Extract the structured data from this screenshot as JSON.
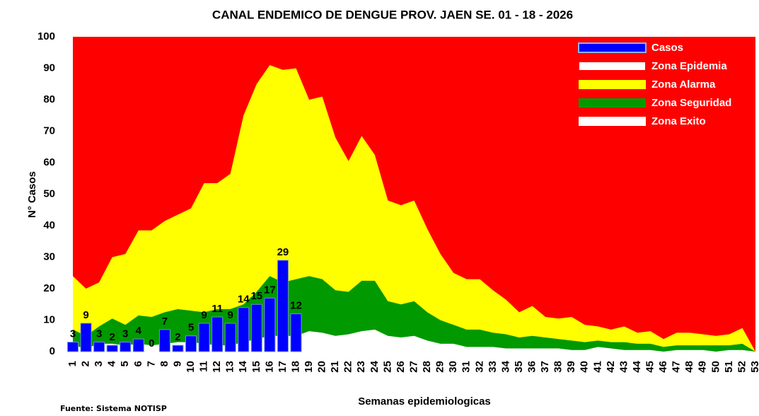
{
  "chart_data": {
    "type": "area",
    "title": "CANAL ENDEMICO DE DENGUE PROV. JAEN SE. 01 - 18 - 2026",
    "x_label": "Semanas epidemiologicas",
    "y_label": "N° Casos",
    "source": "Fuente: Sistema NOTISP",
    "categories": [
      "1",
      "2",
      "3",
      "4",
      "5",
      "6",
      "7",
      "8",
      "9",
      "10",
      "11",
      "12",
      "13",
      "14",
      "15",
      "16",
      "17",
      "18",
      "19",
      "20",
      "21",
      "22",
      "23",
      "24",
      "25",
      "26",
      "27",
      "28",
      "29",
      "30",
      "31",
      "32",
      "33",
      "34",
      "35",
      "36",
      "37",
      "38",
      "39",
      "40",
      "41",
      "42",
      "43",
      "44",
      "45",
      "46",
      "47",
      "48",
      "49",
      "50",
      "51",
      "52",
      "53"
    ],
    "ylim": [
      0,
      100
    ],
    "yticks": [
      0,
      10,
      20,
      30,
      40,
      50,
      60,
      70,
      80,
      90,
      100
    ],
    "grid": false,
    "legend": "top-right",
    "series": [
      {
        "name": "Casos",
        "type": "bar",
        "color": "#0000ff",
        "values": [
          3,
          9,
          3,
          2,
          3,
          4,
          0,
          7,
          2,
          5,
          9,
          11,
          9,
          14,
          15,
          17,
          29,
          12,
          null,
          null,
          null,
          null,
          null,
          null,
          null,
          null,
          null,
          null,
          null,
          null,
          null,
          null,
          null,
          null,
          null,
          null,
          null,
          null,
          null,
          null,
          null,
          null,
          null,
          null,
          null,
          null,
          null,
          null,
          null,
          null,
          null,
          null,
          null
        ]
      },
      {
        "name": "Zona Epidemia",
        "type": "area",
        "color": "#ff0000",
        "values": [
          100,
          100,
          100,
          100,
          100,
          100,
          100,
          100,
          100,
          100,
          100,
          100,
          100,
          100,
          100,
          100,
          100,
          100,
          100,
          100,
          100,
          100,
          100,
          100,
          100,
          100,
          100,
          100,
          100,
          100,
          100,
          100,
          100,
          100,
          100,
          100,
          100,
          100,
          100,
          100,
          100,
          100,
          100,
          100,
          100,
          100,
          100,
          100,
          100,
          100,
          100,
          100,
          100
        ]
      },
      {
        "name": "Zona Alarma",
        "type": "area",
        "color": "#ffff00",
        "values": [
          24,
          20,
          22,
          30,
          31,
          38.5,
          38.5,
          41.5,
          43.5,
          45.5,
          53.5,
          53.5,
          56.5,
          75,
          85,
          91,
          89.5,
          90,
          80,
          81,
          68,
          60.5,
          68.5,
          62.5,
          48,
          46.5,
          48,
          39,
          31,
          25,
          23,
          23,
          19.5,
          16.5,
          12.5,
          14.5,
          11,
          10.5,
          11,
          8.5,
          8,
          7,
          8,
          6,
          6.5,
          4,
          6,
          6,
          5.5,
          5,
          5.5,
          7.5,
          0
        ]
      },
      {
        "name": "Zona Seguridad",
        "type": "area",
        "color": "#009900",
        "values": [
          7,
          5,
          8,
          10.5,
          8.5,
          11.5,
          11,
          12.5,
          13.5,
          13,
          12.5,
          13.5,
          13.5,
          15,
          19,
          24,
          22,
          23,
          24,
          23,
          19.5,
          19,
          22.5,
          22.5,
          16,
          15,
          16,
          12.5,
          10,
          8.5,
          7,
          7,
          6,
          5.5,
          4.5,
          5,
          4.5,
          4,
          3.5,
          3,
          3.5,
          3,
          3,
          2.5,
          2.5,
          1.5,
          2,
          2,
          2,
          2,
          2,
          2.5,
          0
        ]
      },
      {
        "name": "Zona Exito",
        "type": "area",
        "color": "#ffffff",
        "values": [
          2,
          1,
          2.5,
          2.5,
          2,
          2.5,
          2,
          2.5,
          3,
          3,
          2.5,
          2,
          2,
          3,
          4,
          5,
          5,
          5,
          6.5,
          6,
          5,
          5.5,
          6.5,
          7,
          5,
          4.5,
          5,
          3.5,
          2.5,
          2.5,
          1.5,
          1.5,
          1.5,
          1,
          1,
          1,
          1,
          1,
          0.5,
          0.5,
          1.5,
          1,
          0.5,
          0.5,
          0.5,
          0,
          0.5,
          0.5,
          0.5,
          0,
          0.5,
          0.5,
          0
        ]
      }
    ]
  }
}
